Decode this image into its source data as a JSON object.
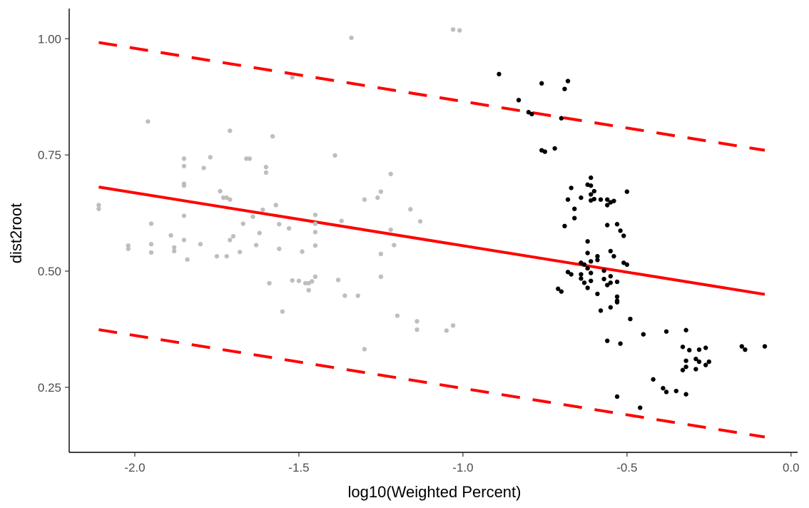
{
  "chart_data": {
    "type": "scatter",
    "title": "",
    "xlabel": "log10(Weighted Percent)",
    "ylabel": "dist2root",
    "xlim": [
      -2.2,
      0.02
    ],
    "ylim": [
      0.11,
      1.065
    ],
    "x_ticks": [
      -2.0,
      -1.5,
      -1.0,
      -0.5,
      0.0
    ],
    "x_tick_labels": [
      "-2.0",
      "-1.5",
      "-1.0",
      "-0.5",
      "0.0"
    ],
    "y_ticks": [
      0.25,
      0.5,
      0.75,
      1.0
    ],
    "y_tick_labels": [
      "0.25",
      "0.50",
      "0.75",
      "1.00"
    ],
    "grid": false,
    "colors": {
      "gray_points": "#bebebe",
      "black_points": "#000000",
      "fit_line": "#ff0000",
      "band_lines": "#ff0000"
    },
    "series": [
      {
        "color": "#bebebe",
        "points": [
          [
            -2.11,
            0.642
          ],
          [
            -2.11,
            0.634
          ],
          [
            -2.02,
            0.555
          ],
          [
            -2.02,
            0.548
          ],
          [
            -1.96,
            0.822
          ],
          [
            -1.95,
            0.602
          ],
          [
            -1.95,
            0.558
          ],
          [
            -1.95,
            0.54
          ],
          [
            -1.89,
            0.577
          ],
          [
            -1.88,
            0.551
          ],
          [
            -1.88,
            0.543
          ],
          [
            -1.85,
            0.742
          ],
          [
            -1.85,
            0.726
          ],
          [
            -1.85,
            0.688
          ],
          [
            -1.85,
            0.684
          ],
          [
            -1.85,
            0.619
          ],
          [
            -1.85,
            0.567
          ],
          [
            -1.84,
            0.525
          ],
          [
            -1.8,
            0.558
          ],
          [
            -1.79,
            0.722
          ],
          [
            -1.77,
            0.745
          ],
          [
            -1.75,
            0.532
          ],
          [
            -1.74,
            0.672
          ],
          [
            -1.73,
            0.658
          ],
          [
            -1.72,
            0.658
          ],
          [
            -1.72,
            0.532
          ],
          [
            -1.71,
            0.802
          ],
          [
            -1.71,
            0.654
          ],
          [
            -1.71,
            0.567
          ],
          [
            -1.7,
            0.575
          ],
          [
            -1.68,
            0.541
          ],
          [
            -1.67,
            0.602
          ],
          [
            -1.66,
            0.742
          ],
          [
            -1.65,
            0.742
          ],
          [
            -1.64,
            0.617
          ],
          [
            -1.63,
            0.556
          ],
          [
            -1.62,
            0.582
          ],
          [
            -1.61,
            0.632
          ],
          [
            -1.6,
            0.724
          ],
          [
            -1.6,
            0.712
          ],
          [
            -1.59,
            0.474
          ],
          [
            -1.58,
            0.79
          ],
          [
            -1.57,
            0.642
          ],
          [
            -1.56,
            0.601
          ],
          [
            -1.56,
            0.548
          ],
          [
            -1.55,
            0.413
          ],
          [
            -1.53,
            0.592
          ],
          [
            -1.52,
            0.917
          ],
          [
            -1.52,
            0.48
          ],
          [
            -1.5,
            0.479
          ],
          [
            -1.49,
            0.542
          ],
          [
            -1.48,
            0.474
          ],
          [
            -1.47,
            0.474
          ],
          [
            -1.47,
            0.459
          ],
          [
            -1.46,
            0.478
          ],
          [
            -1.45,
            0.621
          ],
          [
            -1.45,
            0.602
          ],
          [
            -1.45,
            0.584
          ],
          [
            -1.45,
            0.555
          ],
          [
            -1.45,
            0.488
          ],
          [
            -1.39,
            0.749
          ],
          [
            -1.38,
            0.481
          ],
          [
            -1.37,
            0.608
          ],
          [
            -1.36,
            0.447
          ],
          [
            -1.34,
            1.002
          ],
          [
            -1.32,
            0.447
          ],
          [
            -1.3,
            0.332
          ],
          [
            -1.3,
            0.654
          ],
          [
            -1.26,
            0.658
          ],
          [
            -1.25,
            0.671
          ],
          [
            -1.25,
            0.537
          ],
          [
            -1.25,
            0.488
          ],
          [
            -1.22,
            0.709
          ],
          [
            -1.22,
            0.589
          ],
          [
            -1.21,
            0.556
          ],
          [
            -1.2,
            0.404
          ],
          [
            -1.16,
            0.633
          ],
          [
            -1.14,
            0.392
          ],
          [
            -1.14,
            0.374
          ],
          [
            -1.13,
            0.607
          ],
          [
            -1.05,
            0.372
          ],
          [
            -1.03,
            0.383
          ],
          [
            -1.03,
            1.02
          ],
          [
            -1.01,
            1.018
          ]
        ]
      },
      {
        "color": "#000000",
        "points": [
          [
            -0.89,
            0.924
          ],
          [
            -0.83,
            0.868
          ],
          [
            -0.8,
            0.842
          ],
          [
            -0.79,
            0.838
          ],
          [
            -0.76,
            0.904
          ],
          [
            -0.76,
            0.76
          ],
          [
            -0.75,
            0.757
          ],
          [
            -0.72,
            0.764
          ],
          [
            -0.71,
            0.462
          ],
          [
            -0.7,
            0.456
          ],
          [
            -0.7,
            0.829
          ],
          [
            -0.69,
            0.892
          ],
          [
            -0.69,
            0.597
          ],
          [
            -0.68,
            0.909
          ],
          [
            -0.68,
            0.654
          ],
          [
            -0.68,
            0.498
          ],
          [
            -0.67,
            0.679
          ],
          [
            -0.67,
            0.493
          ],
          [
            -0.66,
            0.614
          ],
          [
            -0.66,
            0.634
          ],
          [
            -0.64,
            0.658
          ],
          [
            -0.64,
            0.518
          ],
          [
            -0.64,
            0.493
          ],
          [
            -0.64,
            0.484
          ],
          [
            -0.63,
            0.475
          ],
          [
            -0.63,
            0.514
          ],
          [
            -0.62,
            0.686
          ],
          [
            -0.62,
            0.564
          ],
          [
            -0.62,
            0.539
          ],
          [
            -0.62,
            0.506
          ],
          [
            -0.62,
            0.464
          ],
          [
            -0.61,
            0.701
          ],
          [
            -0.61,
            0.684
          ],
          [
            -0.61,
            0.665
          ],
          [
            -0.61,
            0.652
          ],
          [
            -0.61,
            0.521
          ],
          [
            -0.61,
            0.496
          ],
          [
            -0.61,
            0.479
          ],
          [
            -0.6,
            0.672
          ],
          [
            -0.6,
            0.655
          ],
          [
            -0.59,
            0.532
          ],
          [
            -0.59,
            0.524
          ],
          [
            -0.59,
            0.451
          ],
          [
            -0.58,
            0.415
          ],
          [
            -0.58,
            0.654
          ],
          [
            -0.57,
            0.501
          ],
          [
            -0.57,
            0.483
          ],
          [
            -0.56,
            0.654
          ],
          [
            -0.56,
            0.642
          ],
          [
            -0.56,
            0.599
          ],
          [
            -0.56,
            0.47
          ],
          [
            -0.56,
            0.35
          ],
          [
            -0.55,
            0.648
          ],
          [
            -0.55,
            0.543
          ],
          [
            -0.55,
            0.489
          ],
          [
            -0.55,
            0.475
          ],
          [
            -0.55,
            0.422
          ],
          [
            -0.54,
            0.651
          ],
          [
            -0.54,
            0.532
          ],
          [
            -0.53,
            0.601
          ],
          [
            -0.53,
            0.477
          ],
          [
            -0.53,
            0.445
          ],
          [
            -0.53,
            0.433
          ],
          [
            -0.53,
            0.436
          ],
          [
            -0.53,
            0.23
          ],
          [
            -0.52,
            0.587
          ],
          [
            -0.52,
            0.344
          ],
          [
            -0.51,
            0.576
          ],
          [
            -0.51,
            0.518
          ],
          [
            -0.5,
            0.671
          ],
          [
            -0.5,
            0.514
          ],
          [
            -0.49,
            0.397
          ],
          [
            -0.46,
            0.206
          ],
          [
            -0.45,
            0.364
          ],
          [
            -0.42,
            0.267
          ],
          [
            -0.39,
            0.248
          ],
          [
            -0.38,
            0.24
          ],
          [
            -0.38,
            0.37
          ],
          [
            -0.35,
            0.242
          ],
          [
            -0.33,
            0.337
          ],
          [
            -0.33,
            0.287
          ],
          [
            -0.32,
            0.373
          ],
          [
            -0.32,
            0.307
          ],
          [
            -0.32,
            0.294
          ],
          [
            -0.32,
            0.235
          ],
          [
            -0.31,
            0.33
          ],
          [
            -0.29,
            0.311
          ],
          [
            -0.29,
            0.289
          ],
          [
            -0.28,
            0.331
          ],
          [
            -0.28,
            0.305
          ],
          [
            -0.26,
            0.335
          ],
          [
            -0.26,
            0.298
          ],
          [
            -0.25,
            0.305
          ],
          [
            -0.15,
            0.338
          ],
          [
            -0.14,
            0.331
          ],
          [
            -0.08,
            0.338
          ]
        ]
      }
    ],
    "lines": [
      {
        "style": "solid",
        "color": "#ff0000",
        "x": [
          -2.11,
          -0.08
        ],
        "y": [
          0.681,
          0.45
        ]
      },
      {
        "style": "dashed",
        "color": "#ff0000",
        "x": [
          -2.11,
          -0.08
        ],
        "y": [
          0.992,
          0.76
        ]
      },
      {
        "style": "dashed",
        "color": "#ff0000",
        "x": [
          -2.11,
          -0.08
        ],
        "y": [
          0.374,
          0.143
        ]
      }
    ]
  }
}
